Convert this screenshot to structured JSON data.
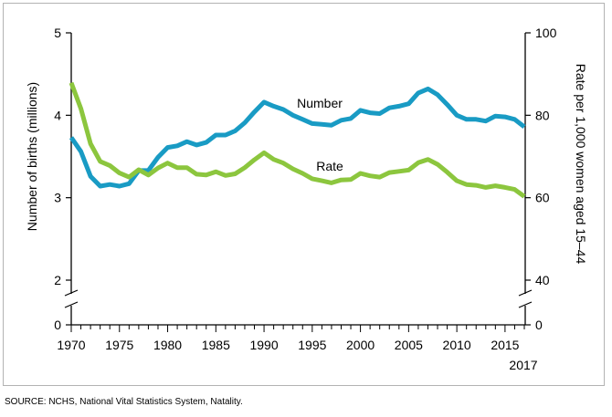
{
  "source": "SOURCE: NCHS, National Vital Statistics System, Natality.",
  "chart_data": {
    "type": "line",
    "xlabel": "",
    "x_ticks": [
      1970,
      1975,
      1980,
      1985,
      1990,
      1995,
      2000,
      2005,
      2010,
      2015
    ],
    "x_end_label": "2017",
    "xlim": [
      1970,
      2017
    ],
    "ylabel_left": "Number of births (millions)",
    "ylabel_right": "Rate per 1,000 women aged 15–44",
    "y_left_ticks": [
      2,
      3,
      4,
      5
    ],
    "y_left_zero": 0,
    "y_left_lim": [
      2,
      5
    ],
    "y_right_ticks": [
      40,
      60,
      80,
      100
    ],
    "y_right_zero": 0,
    "y_right_lim": [
      40,
      100
    ],
    "axis_break": true,
    "grid": false,
    "x": [
      1970,
      1971,
      1972,
      1973,
      1974,
      1975,
      1976,
      1977,
      1978,
      1979,
      1980,
      1981,
      1982,
      1983,
      1984,
      1985,
      1986,
      1987,
      1988,
      1989,
      1990,
      1991,
      1992,
      1993,
      1994,
      1995,
      1996,
      1997,
      1998,
      1999,
      2000,
      2001,
      2002,
      2003,
      2004,
      2005,
      2006,
      2007,
      2008,
      2009,
      2010,
      2011,
      2012,
      2013,
      2014,
      2015,
      2016,
      2017
    ],
    "series": [
      {
        "name": "Number",
        "axis": "left",
        "color": "#199bc4",
        "values": [
          3.73,
          3.56,
          3.26,
          3.14,
          3.16,
          3.14,
          3.17,
          3.33,
          3.33,
          3.49,
          3.61,
          3.63,
          3.68,
          3.64,
          3.67,
          3.76,
          3.76,
          3.81,
          3.91,
          4.04,
          4.16,
          4.11,
          4.07,
          4.0,
          3.95,
          3.9,
          3.89,
          3.88,
          3.94,
          3.96,
          4.06,
          4.03,
          4.02,
          4.09,
          4.11,
          4.14,
          4.27,
          4.32,
          4.25,
          4.13,
          4.0,
          3.95,
          3.95,
          3.93,
          3.99,
          3.98,
          3.95,
          3.86
        ]
      },
      {
        "name": "Rate",
        "axis": "right",
        "color": "#8cc63e",
        "values": [
          87.9,
          81.6,
          73.1,
          68.8,
          67.8,
          66.0,
          65.0,
          66.8,
          65.5,
          67.2,
          68.4,
          67.3,
          67.3,
          65.7,
          65.5,
          66.3,
          65.4,
          65.8,
          67.3,
          69.2,
          70.9,
          69.3,
          68.4,
          67.0,
          65.9,
          64.6,
          64.1,
          63.6,
          64.3,
          64.4,
          65.9,
          65.3,
          65.0,
          66.1,
          66.4,
          66.7,
          68.5,
          69.3,
          68.1,
          66.2,
          64.1,
          63.2,
          63.0,
          62.5,
          62.9,
          62.5,
          62.0,
          60.3
        ]
      }
    ],
    "annotations": [
      "Number",
      "Rate"
    ]
  }
}
